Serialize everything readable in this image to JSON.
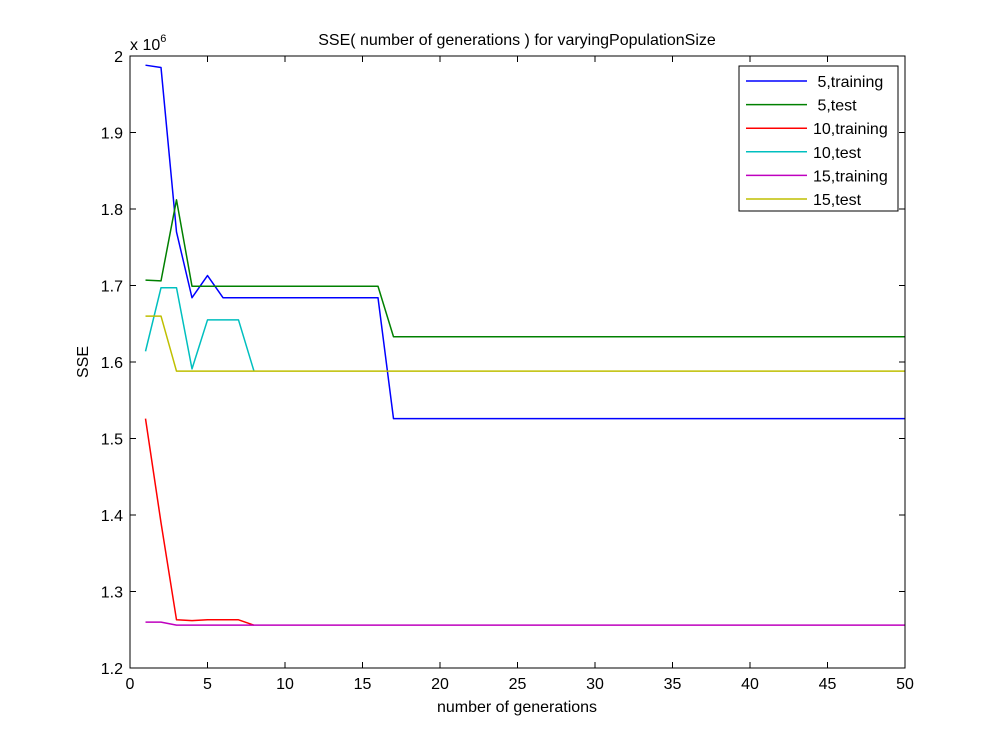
{
  "chart_data": {
    "type": "line",
    "title": "SSE( number of generations ) for varyingPopulationSize",
    "xlabel": "number of generations",
    "ylabel": "SSE",
    "y_multiplier_label": "x 10",
    "y_multiplier_exponent": "6",
    "xlim": [
      0,
      50
    ],
    "ylim": [
      1.2,
      2.0
    ],
    "x_ticks": [
      0,
      5,
      10,
      15,
      20,
      25,
      30,
      35,
      40,
      45,
      50
    ],
    "x_tick_labels": [
      "0",
      "5",
      "10",
      "15",
      "20",
      "25",
      "30",
      "35",
      "40",
      "45",
      "50"
    ],
    "y_ticks": [
      1.2,
      1.3,
      1.4,
      1.5,
      1.6,
      1.7,
      1.8,
      1.9,
      2.0
    ],
    "y_tick_labels": [
      "1.2",
      "1.3",
      "1.4",
      "1.5",
      "1.6",
      "1.7",
      "1.8",
      "1.9",
      "2"
    ],
    "grid": false,
    "legend_position": "top-right",
    "series": [
      {
        "name": " 5,training",
        "color": "#0000ff",
        "x": [
          1,
          2,
          3,
          4,
          5,
          6,
          7,
          8,
          9,
          10,
          11,
          12,
          13,
          14,
          15,
          16,
          17,
          18,
          19,
          20,
          21,
          22,
          23,
          24,
          25,
          26,
          27,
          28,
          29,
          30,
          31,
          32,
          33,
          34,
          35,
          36,
          37,
          38,
          39,
          40,
          41,
          42,
          43,
          44,
          45,
          46,
          47,
          48,
          49,
          50
        ],
        "y": [
          1.988,
          1.985,
          1.77,
          1.684,
          1.713,
          1.684,
          1.684,
          1.684,
          1.684,
          1.684,
          1.684,
          1.684,
          1.684,
          1.684,
          1.684,
          1.684,
          1.526,
          1.526,
          1.526,
          1.526,
          1.526,
          1.526,
          1.526,
          1.526,
          1.526,
          1.526,
          1.526,
          1.526,
          1.526,
          1.526,
          1.526,
          1.526,
          1.526,
          1.526,
          1.526,
          1.526,
          1.526,
          1.526,
          1.526,
          1.526,
          1.526,
          1.526,
          1.526,
          1.526,
          1.526,
          1.526,
          1.526,
          1.526,
          1.526,
          1.526
        ]
      },
      {
        "name": " 5,test",
        "color": "#008000",
        "x": [
          1,
          2,
          3,
          4,
          5,
          6,
          7,
          8,
          9,
          10,
          11,
          12,
          13,
          14,
          15,
          16,
          17,
          18,
          19,
          20,
          21,
          22,
          23,
          24,
          25,
          26,
          27,
          28,
          29,
          30,
          31,
          32,
          33,
          34,
          35,
          36,
          37,
          38,
          39,
          40,
          41,
          42,
          43,
          44,
          45,
          46,
          47,
          48,
          49,
          50
        ],
        "y": [
          1.707,
          1.706,
          1.812,
          1.699,
          1.699,
          1.699,
          1.699,
          1.699,
          1.699,
          1.699,
          1.699,
          1.699,
          1.699,
          1.699,
          1.699,
          1.699,
          1.633,
          1.633,
          1.633,
          1.633,
          1.633,
          1.633,
          1.633,
          1.633,
          1.633,
          1.633,
          1.633,
          1.633,
          1.633,
          1.633,
          1.633,
          1.633,
          1.633,
          1.633,
          1.633,
          1.633,
          1.633,
          1.633,
          1.633,
          1.633,
          1.633,
          1.633,
          1.633,
          1.633,
          1.633,
          1.633,
          1.633,
          1.633,
          1.633,
          1.633
        ]
      },
      {
        "name": "10,training",
        "color": "#ff0000",
        "x": [
          1,
          2,
          3,
          4,
          5,
          6,
          7,
          8
        ],
        "y": [
          1.526,
          1.39,
          1.263,
          1.262,
          1.263,
          1.263,
          1.263,
          1.256
        ]
      },
      {
        "name": "10,test",
        "color": "#00bfbf",
        "x": [
          1,
          2,
          3,
          4,
          5,
          6,
          7,
          8
        ],
        "y": [
          1.614,
          1.697,
          1.697,
          1.591,
          1.655,
          1.655,
          1.655,
          1.588
        ]
      },
      {
        "name": "15,training",
        "color": "#bf00bf",
        "x": [
          1,
          2,
          3,
          4,
          5,
          6,
          7,
          8,
          9,
          10,
          11,
          12,
          13,
          14,
          15,
          16,
          17,
          18,
          19,
          20,
          21,
          22,
          23,
          24,
          25,
          26,
          27,
          28,
          29,
          30,
          31,
          32,
          33,
          34,
          35,
          36,
          37,
          38,
          39,
          40,
          41,
          42,
          43,
          44,
          45,
          46,
          47,
          48,
          49,
          50
        ],
        "y": [
          1.26,
          1.26,
          1.256,
          1.256,
          1.256,
          1.256,
          1.256,
          1.256,
          1.256,
          1.256,
          1.256,
          1.256,
          1.256,
          1.256,
          1.256,
          1.256,
          1.256,
          1.256,
          1.256,
          1.256,
          1.256,
          1.256,
          1.256,
          1.256,
          1.256,
          1.256,
          1.256,
          1.256,
          1.256,
          1.256,
          1.256,
          1.256,
          1.256,
          1.256,
          1.256,
          1.256,
          1.256,
          1.256,
          1.256,
          1.256,
          1.256,
          1.256,
          1.256,
          1.256,
          1.256,
          1.256,
          1.256,
          1.256,
          1.256,
          1.256
        ]
      },
      {
        "name": "15,test",
        "color": "#bfbf00",
        "x": [
          1,
          2,
          3,
          4,
          5,
          6,
          7,
          8,
          9,
          10,
          11,
          12,
          13,
          14,
          15,
          16,
          17,
          18,
          19,
          20,
          21,
          22,
          23,
          24,
          25,
          26,
          27,
          28,
          29,
          30,
          31,
          32,
          33,
          34,
          35,
          36,
          37,
          38,
          39,
          40,
          41,
          42,
          43,
          44,
          45,
          46,
          47,
          48,
          49,
          50
        ],
        "y": [
          1.66,
          1.66,
          1.588,
          1.588,
          1.588,
          1.588,
          1.588,
          1.588,
          1.588,
          1.588,
          1.588,
          1.588,
          1.588,
          1.588,
          1.588,
          1.588,
          1.588,
          1.588,
          1.588,
          1.588,
          1.588,
          1.588,
          1.588,
          1.588,
          1.588,
          1.588,
          1.588,
          1.588,
          1.588,
          1.588,
          1.588,
          1.588,
          1.588,
          1.588,
          1.588,
          1.588,
          1.588,
          1.588,
          1.588,
          1.588,
          1.588,
          1.588,
          1.588,
          1.588,
          1.588,
          1.588,
          1.588,
          1.588,
          1.588,
          1.588
        ]
      }
    ]
  }
}
